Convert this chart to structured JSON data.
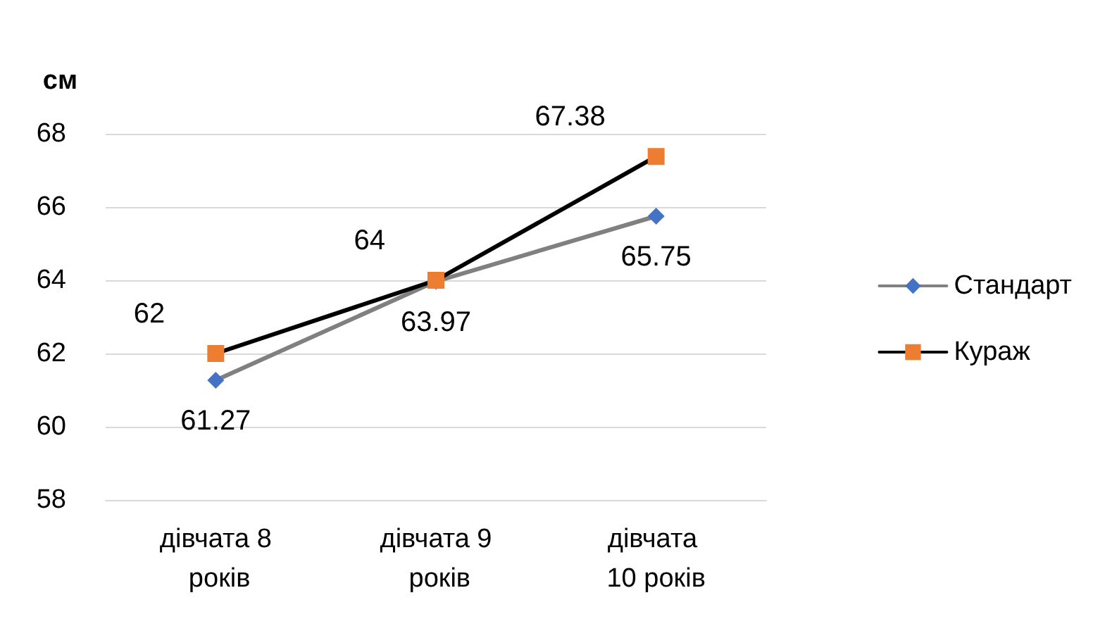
{
  "chart_data": {
    "type": "line",
    "ylabel": "см",
    "categories": [
      "дівчата 8 років",
      "дівчата 9 років",
      "дівчата 10 років"
    ],
    "series": [
      {
        "name": "Стандарт",
        "color": "#808080",
        "colors": [
          "#4472c4",
          "#4472c4",
          "#4472c4"
        ],
        "marker": "diamond",
        "values": [
          61.27,
          63.97,
          65.75
        ]
      },
      {
        "name": "Кураж",
        "color": "#000000",
        "colors": [
          "#ed7d31",
          "#ed7d31",
          "#ed7d31"
        ],
        "marker": "square",
        "values": [
          62,
          64,
          67.38
        ]
      }
    ],
    "ylim": [
      58,
      68
    ],
    "yticks": [
      58,
      60,
      62,
      64,
      66,
      68
    ],
    "grid": "y",
    "legend": "right",
    "data_labels": true,
    "line_style": "solid"
  }
}
